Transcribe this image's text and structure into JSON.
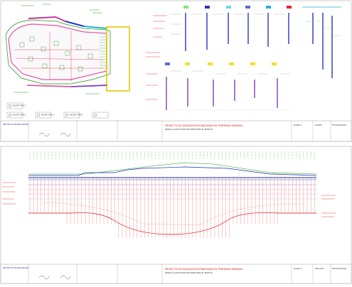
{
  "sheet_top": {
    "title_block": {
      "project_title": "PROYECTO DE EXCAVACION ESTABILIZADA EN TIMPORADA MEDIANO",
      "project_title_2": "PANTALLA DE PILOTES SECANTES PARA EL EDIFICIO",
      "company": "PROYECTO DE EXCAVACION",
      "drawing_no": "PLANO 1",
      "sheet_label": "ESTUDIO NAVAL",
      "scale_label": "PLANTA",
      "revision": "1"
    },
    "legend_items": [
      {
        "label": "PILOTE TIPO 1",
        "color": "#c8c8c8"
      },
      {
        "label": "PILOTE TIPO 2",
        "color": "#6a6a6a"
      },
      {
        "label": "PILOTE TIPO 3",
        "color": "#6a6a6a"
      },
      {
        "label": "PILOTE TIPO 4",
        "color": "#6a6a6a"
      }
    ],
    "pile_header_colors": [
      "#7ee66e",
      "#2a34c0",
      "#6fd8ef",
      "#5b67d8",
      "#23b0d6",
      "#2a34c0",
      "#e8232a"
    ],
    "pile_header_colors_2": [
      "#5a6ae0",
      "#f0e020",
      "#f0e020",
      "#f0e020",
      "#f0e020",
      "#f0e020"
    ]
  },
  "sheet_bottom": {
    "title_block": {
      "project_title": "PROYECTO DE EXCAVACION ESTABILIZADA EN TIMPORADA MEDIANO",
      "project_title_2": "PANTALLA DE PILOTES SECANTES PARA EL EDIFICIO",
      "company": "PROYECTO DE EXCAVACION",
      "drawing_no": "PLANO 2",
      "sheet_label": "ESTUDIO NAVAL",
      "scale_label": "SECCION",
      "revision": "1"
    }
  },
  "colors": {
    "green": "#1a9a1a",
    "red": "#d11",
    "blue": "#1a2fb0",
    "yellow": "#e8c800",
    "purple": "#7b3fc0"
  }
}
